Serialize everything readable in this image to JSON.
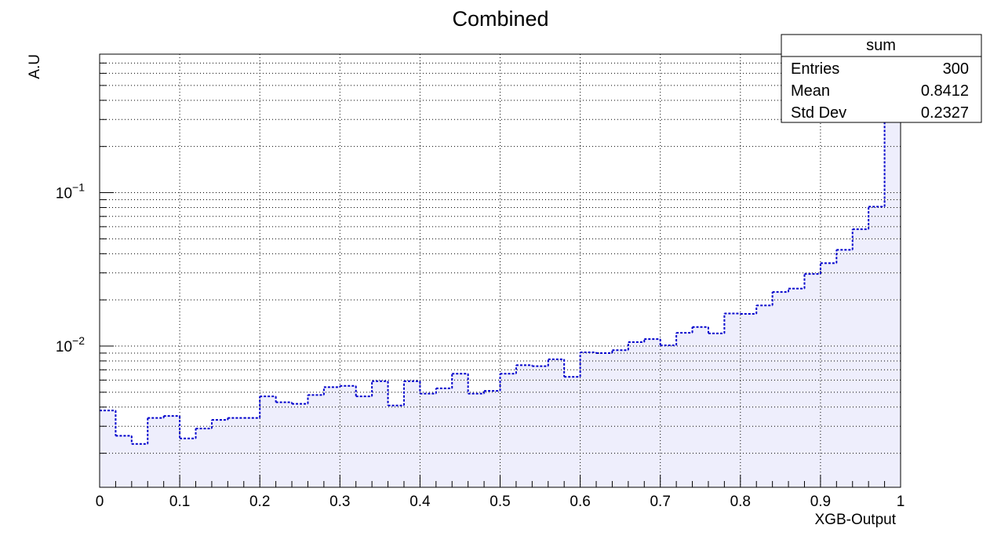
{
  "chart_data": {
    "type": "histogram",
    "title": "Combined",
    "xlabel": "XGB-Output",
    "ylabel": "A.U",
    "yscale": "log",
    "xlim": [
      0,
      1
    ],
    "ylim": [
      0.0012,
      0.8
    ],
    "grid": true,
    "x_ticks": [
      {
        "value": 0,
        "label": "0"
      },
      {
        "value": 0.1,
        "label": "0.1"
      },
      {
        "value": 0.2,
        "label": "0.2"
      },
      {
        "value": 0.3,
        "label": "0.3"
      },
      {
        "value": 0.4,
        "label": "0.4"
      },
      {
        "value": 0.5,
        "label": "0.5"
      },
      {
        "value": 0.6,
        "label": "0.6"
      },
      {
        "value": 0.7,
        "label": "0.7"
      },
      {
        "value": 0.8,
        "label": "0.8"
      },
      {
        "value": 0.9,
        "label": "0.9"
      },
      {
        "value": 1,
        "label": "1"
      }
    ],
    "y_ticks": [
      {
        "value": 0.1,
        "base": "10",
        "exp": "−1"
      },
      {
        "value": 0.01,
        "base": "10",
        "exp": "−2"
      }
    ],
    "series": [
      {
        "name": "sum",
        "line_color": "#0000cc",
        "fill_color": "#eeeefc",
        "line_style": "dotted",
        "bin_edges": [
          0,
          0.02,
          0.04,
          0.06,
          0.08,
          0.1,
          0.12,
          0.14,
          0.16,
          0.18,
          0.2,
          0.22,
          0.24,
          0.26,
          0.28,
          0.3,
          0.32,
          0.34,
          0.36,
          0.38,
          0.4,
          0.42,
          0.44,
          0.46,
          0.48,
          0.5,
          0.52,
          0.54,
          0.56,
          0.58,
          0.6,
          0.62,
          0.64,
          0.66,
          0.68,
          0.7,
          0.72,
          0.74,
          0.76,
          0.78,
          0.8,
          0.82,
          0.84,
          0.86,
          0.88,
          0.9,
          0.92,
          0.94,
          0.96,
          0.98,
          1.0
        ],
        "values": [
          0.0038,
          0.0026,
          0.0023,
          0.0034,
          0.0035,
          0.0025,
          0.0029,
          0.0033,
          0.0034,
          0.0034,
          0.0047,
          0.0043,
          0.0042,
          0.0048,
          0.0054,
          0.0055,
          0.0047,
          0.0059,
          0.0041,
          0.0059,
          0.0049,
          0.0053,
          0.0066,
          0.0049,
          0.0051,
          0.0066,
          0.0075,
          0.0074,
          0.0082,
          0.0063,
          0.0091,
          0.009,
          0.0094,
          0.0106,
          0.0111,
          0.0101,
          0.0122,
          0.0133,
          0.0121,
          0.0163,
          0.0162,
          0.0184,
          0.0225,
          0.0237,
          0.0295,
          0.0347,
          0.0424,
          0.0578,
          0.0811,
          0.45
        ]
      }
    ],
    "stats_box": {
      "title": "sum",
      "rows": [
        {
          "label": "Entries",
          "value": "300"
        },
        {
          "label": "Mean",
          "value": "0.8412"
        },
        {
          "label": "Std Dev",
          "value": "0.2327"
        }
      ]
    }
  }
}
